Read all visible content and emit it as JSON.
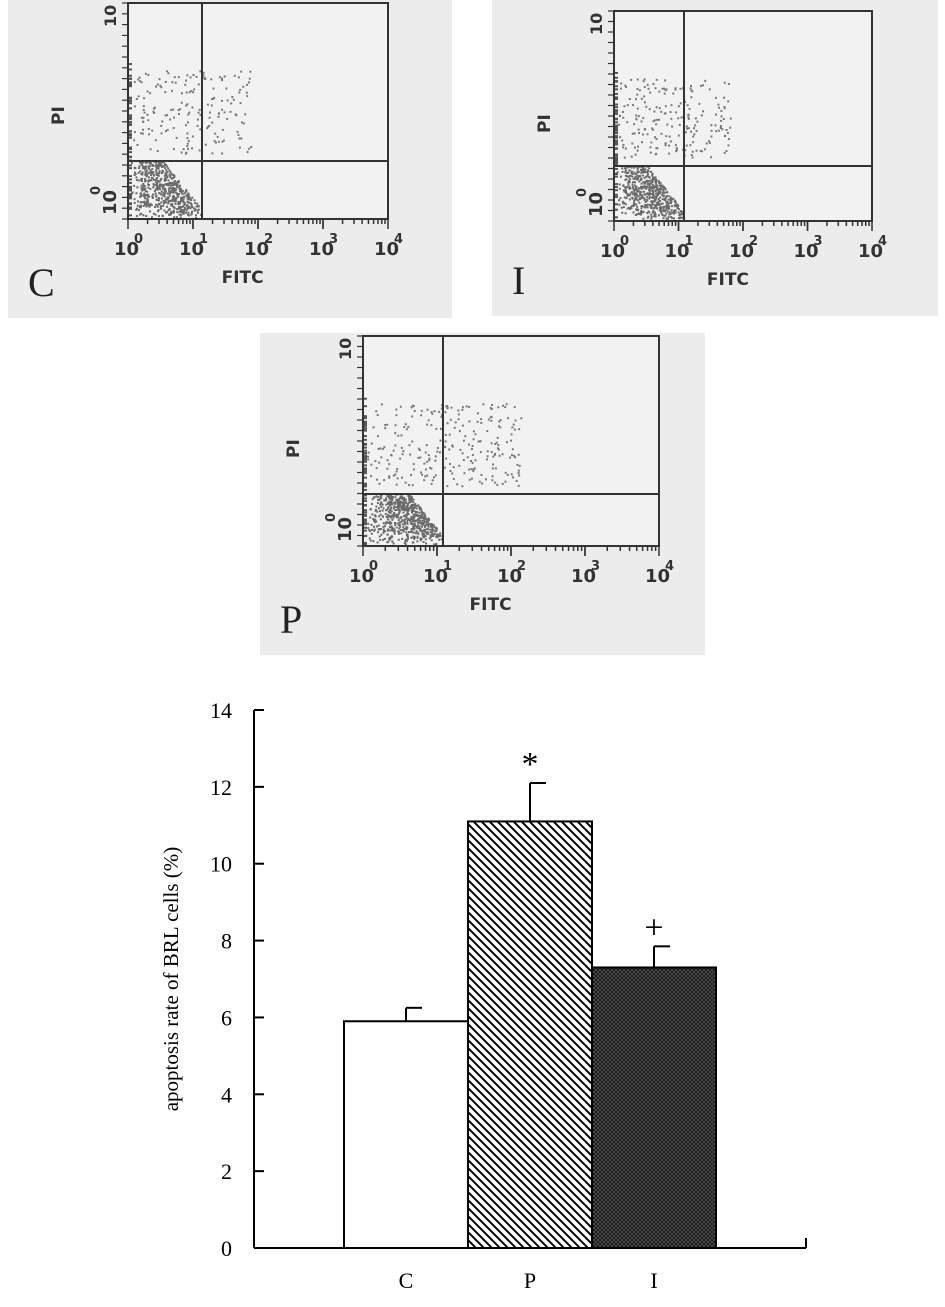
{
  "flow_panels": [
    {
      "id": "C",
      "label": "C",
      "xlabel": "FITC",
      "ylabel": "PI",
      "x_ticks": [
        "10",
        "10",
        "10",
        "10",
        "10"
      ],
      "x_exps": [
        "0",
        "1",
        "2",
        "3",
        "4"
      ],
      "y_top": "10",
      "y_bottom_base": "10",
      "y_bottom_exp": "0"
    },
    {
      "id": "I",
      "label": "I",
      "xlabel": "FITC",
      "ylabel": "PI",
      "x_ticks": [
        "10",
        "10",
        "10",
        "10",
        "10"
      ],
      "x_exps": [
        "0",
        "1",
        "2",
        "3",
        "4"
      ],
      "y_top": "10",
      "y_bottom_base": "10",
      "y_bottom_exp": "0"
    },
    {
      "id": "P",
      "label": "P",
      "xlabel": "FITC",
      "ylabel": "PI",
      "x_ticks": [
        "10",
        "10",
        "10",
        "10",
        "10"
      ],
      "x_exps": [
        "0",
        "1",
        "2",
        "3",
        "4"
      ],
      "y_top": "10",
      "y_bottom_base": "10",
      "y_bottom_exp": "0"
    }
  ],
  "chart_data": {
    "type": "bar",
    "categories": [
      "C",
      "P",
      "I"
    ],
    "values": [
      5.9,
      11.1,
      7.3
    ],
    "errors": [
      0.35,
      1.0,
      0.55
    ],
    "annotations": [
      "",
      "*",
      "+"
    ],
    "fills": [
      "white",
      "diagonal-hatch",
      "dark-crosshatch"
    ],
    "ylabel": "apoptosis rate of BRL cells (%)",
    "xlabel": "",
    "ylim": [
      0,
      14
    ],
    "yticks": [
      0,
      2,
      4,
      6,
      8,
      10,
      12,
      14
    ],
    "grid": false
  }
}
